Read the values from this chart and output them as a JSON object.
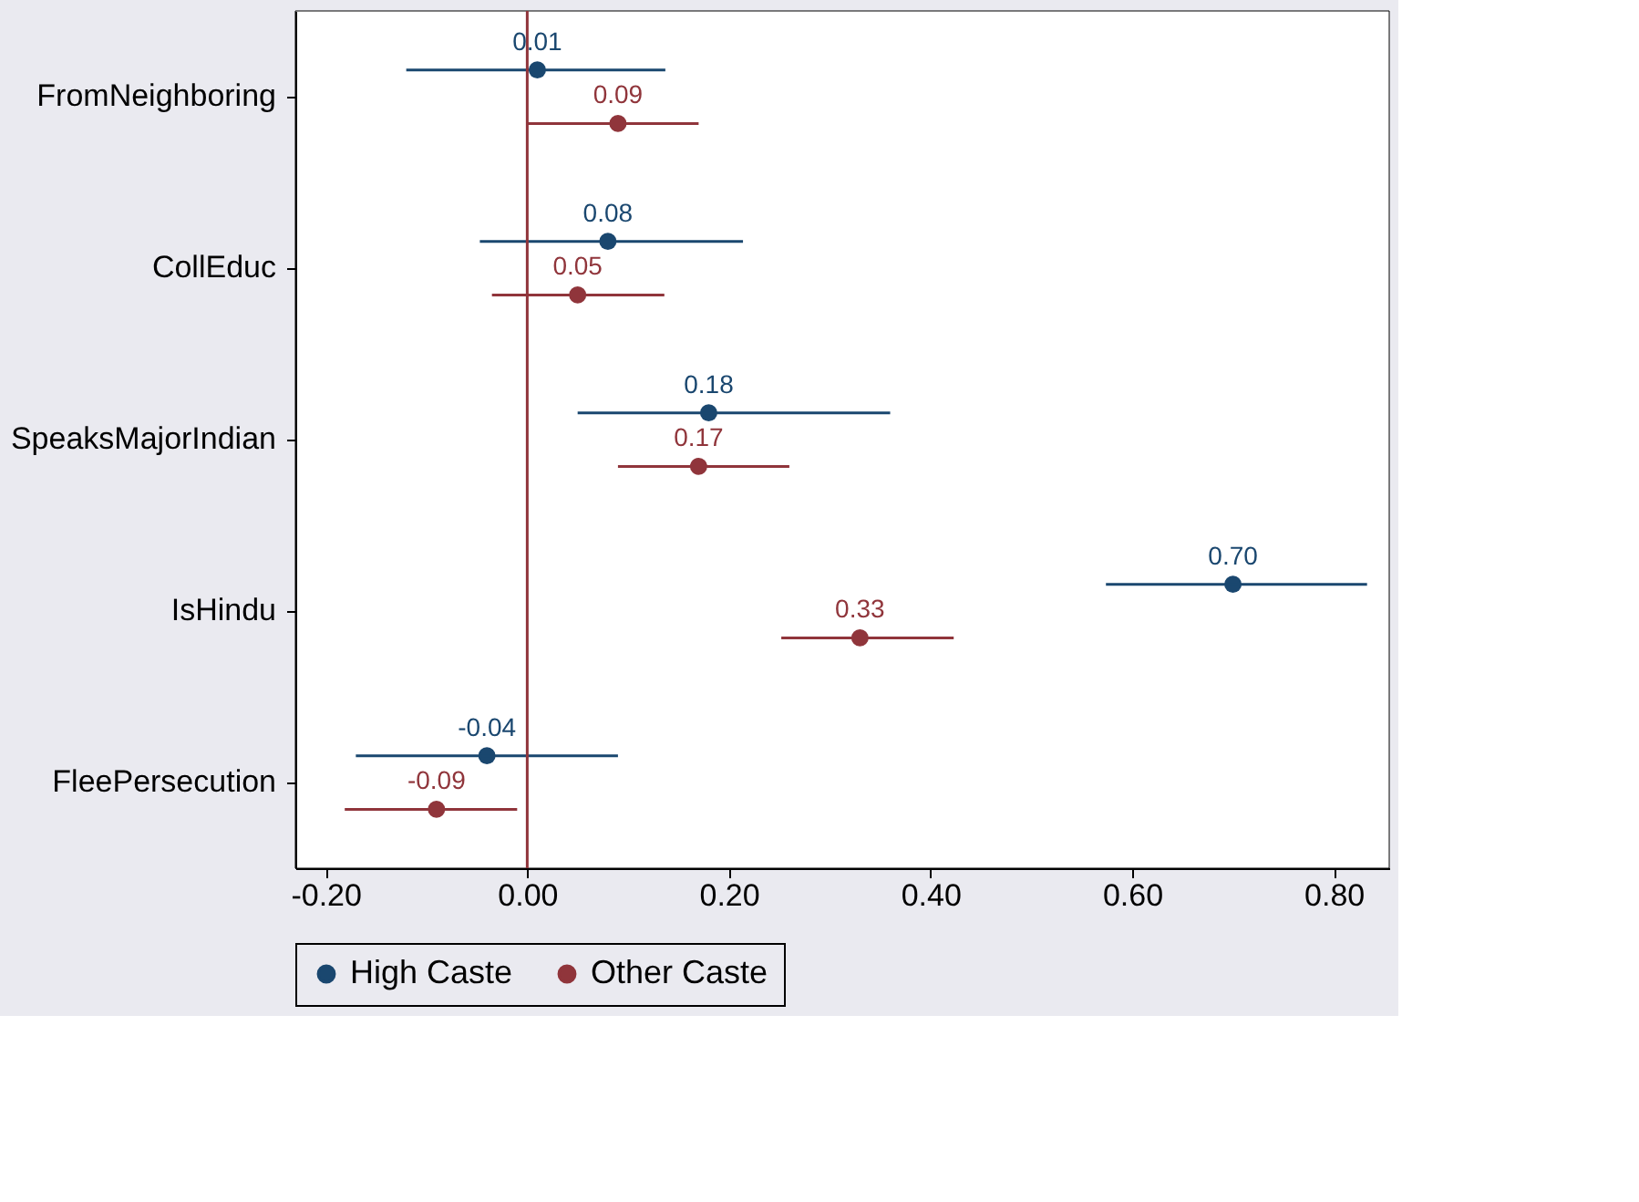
{
  "chart_data": {
    "type": "scatter",
    "orientation": "horizontal",
    "marker": "circle",
    "legend": "bottom",
    "grid": false,
    "categories": [
      "FromNeighboring",
      "CollEduc",
      "SpeaksMajorIndian",
      "IsHindu",
      "FleePersecution"
    ],
    "xlim": [
      -0.23,
      0.855
    ],
    "xticks": [
      {
        "value": -0.2,
        "label": "-0.20"
      },
      {
        "value": 0,
        "label": "0.00"
      },
      {
        "value": 0.2,
        "label": "0.20"
      },
      {
        "value": 0.4,
        "label": "0.40"
      },
      {
        "value": 0.6,
        "label": "0.60"
      },
      {
        "value": 0.8,
        "label": "0.80"
      }
    ],
    "ref_lines": [
      {
        "axis": "x",
        "value": 0,
        "color": "#90353b"
      }
    ],
    "series": [
      {
        "name": "High Caste",
        "color": "#1a476f",
        "values": [
          0.01,
          0.08,
          0.18,
          0.7,
          -0.04
        ],
        "value_labels": [
          "0.01",
          "0.08",
          "0.18",
          "0.70",
          "-0.04"
        ],
        "errors": [
          [
            -0.12,
            0.137
          ],
          [
            -0.047,
            0.214
          ],
          [
            0.05,
            0.36
          ],
          [
            0.574,
            0.833
          ],
          [
            -0.17,
            0.09
          ]
        ]
      },
      {
        "name": "Other Caste",
        "color": "#90353b",
        "values": [
          0.09,
          0.05,
          0.17,
          0.33,
          -0.09
        ],
        "value_labels": [
          "0.09",
          "0.05",
          "0.17",
          "0.33",
          "-0.09"
        ],
        "errors": [
          [
            0.0,
            0.17
          ],
          [
            -0.035,
            0.136
          ],
          [
            0.09,
            0.26
          ],
          [
            0.252,
            0.423
          ],
          [
            -0.181,
            -0.01
          ]
        ]
      }
    ]
  }
}
